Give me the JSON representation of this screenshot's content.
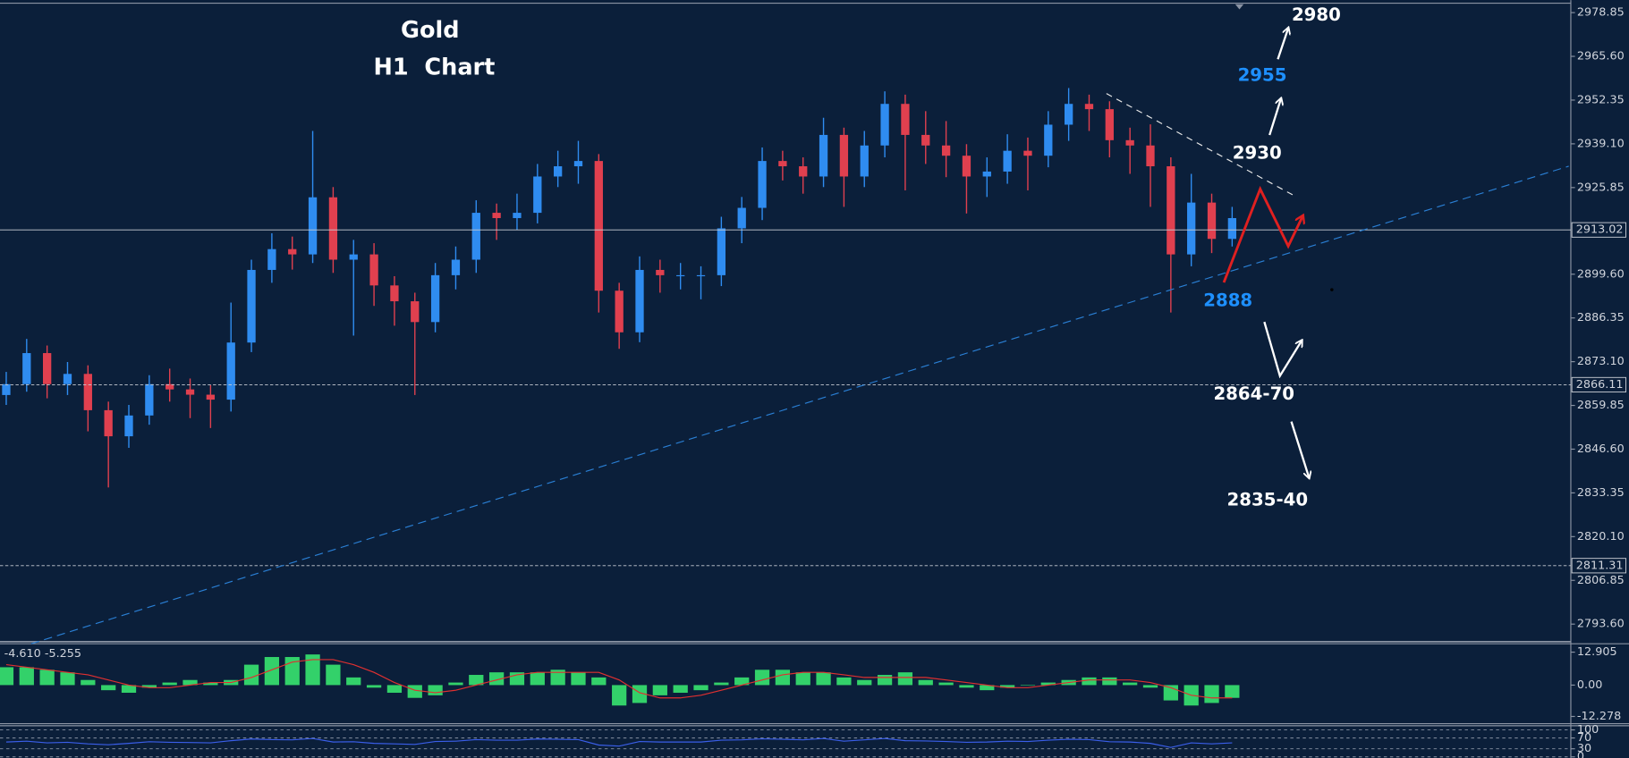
{
  "chart_data": [
    {
      "type": "candlestick",
      "title": "Gold",
      "subtitle": "H1  Chart",
      "up_color": "#2f8cf0",
      "down_color": "#e0404f",
      "open": [
        2863.0,
        2866.3,
        2875.7,
        2866.3,
        2869.4,
        2858.4,
        2850.5,
        2856.8,
        2866.3,
        2864.7,
        2863.1,
        2861.6,
        2878.9,
        2900.9,
        2907.2,
        2905.6,
        2922.9,
        2904.0,
        2905.6,
        2896.2,
        2891.4,
        2885.1,
        2899.3,
        2904.0,
        2918.2,
        2916.6,
        2918.2,
        2929.2,
        2932.3,
        2933.9,
        2894.6,
        2882.0,
        2900.9,
        2899.3,
        2899.3,
        2899.3,
        2913.5,
        2919.7,
        2933.9,
        2932.3,
        2929.2,
        2941.8,
        2929.2,
        2938.6,
        2951.2,
        2941.8,
        2938.6,
        2935.5,
        2929.2,
        2930.7,
        2937.0,
        2935.5,
        2944.9,
        2951.2,
        2949.6,
        2940.2,
        2938.6,
        2932.3,
        2905.6,
        2921.3,
        2910.3
      ],
      "high": [
        2870,
        2880,
        2878,
        2873,
        2872,
        2861,
        2860,
        2869,
        2871,
        2868,
        2866,
        2891,
        2904,
        2912,
        2911,
        2943,
        2926,
        2910,
        2909,
        2899,
        2894,
        2903,
        2908,
        2922,
        2921,
        2924,
        2933,
        2937,
        2940,
        2936,
        2897,
        2905,
        2904,
        2903,
        2902,
        2917,
        2923,
        2938,
        2937,
        2935,
        2947,
        2944,
        2943,
        2955,
        2954,
        2949,
        2946,
        2939,
        2935,
        2942,
        2941,
        2949,
        2956,
        2954,
        2952,
        2944,
        2945,
        2935,
        2930,
        2924,
        2920
      ],
      "low": [
        2860,
        2864,
        2862,
        2863,
        2852,
        2835,
        2847,
        2854,
        2861,
        2856,
        2853,
        2858,
        2876,
        2897,
        2901,
        2903,
        2900,
        2881,
        2890,
        2884,
        2863,
        2882,
        2895,
        2900,
        2910,
        2913,
        2915,
        2926,
        2927,
        2888,
        2877,
        2879,
        2894,
        2895,
        2892,
        2896,
        2909,
        2916,
        2928,
        2924,
        2926,
        2920,
        2926,
        2935,
        2925,
        2933,
        2929,
        2918,
        2923,
        2927,
        2925,
        2932,
        2940,
        2943,
        2935,
        2930,
        2920,
        2888,
        2902,
        2906,
        2908
      ],
      "close": [
        2866.3,
        2875.7,
        2866.3,
        2869.4,
        2858.4,
        2850.5,
        2856.8,
        2866.3,
        2864.7,
        2863.1,
        2861.6,
        2878.9,
        2900.9,
        2907.2,
        2905.6,
        2922.9,
        2904.0,
        2905.6,
        2896.2,
        2891.4,
        2885.1,
        2899.3,
        2904.0,
        2918.2,
        2916.6,
        2918.2,
        2929.2,
        2932.3,
        2933.9,
        2894.6,
        2882.0,
        2900.9,
        2899.3,
        2899.3,
        2899.3,
        2913.5,
        2919.7,
        2933.9,
        2932.3,
        2929.2,
        2941.8,
        2929.2,
        2938.6,
        2951.2,
        2941.8,
        2938.6,
        2935.5,
        2929.2,
        2930.7,
        2937.0,
        2935.5,
        2944.9,
        2951.2,
        2949.6,
        2940.2,
        2938.6,
        2932.3,
        2905.6,
        2921.3,
        2910.3,
        2916.6
      ],
      "ylim": [
        2788.6,
        2981.7
      ],
      "yticks": [
        2978.85,
        {
          "value": 2965.6,
          "label": "2965.60"
        },
        2952.35,
        {
          "value": 2939.1,
          "label": "2939.10"
        },
        2925.85,
        {
          "value": 2899.6,
          "label": "2899.60"
        },
        2886.35,
        {
          "value": 2873.1,
          "label": "2873.10"
        },
        2859.85,
        {
          "value": 2846.6,
          "label": "2846.60"
        },
        2833.35,
        {
          "value": 2820.1,
          "label": "2820.10"
        },
        2806.85,
        {
          "value": 2793.6,
          "label": "2793.60"
        }
      ],
      "levels": [
        {
          "value": 2913.02,
          "style": "solid"
        },
        {
          "value": 2866.11,
          "style": "dashed"
        },
        {
          "value": 2811.31,
          "style": "dashed"
        }
      ],
      "level_color": "#c8ccd4",
      "annotations": [
        {
          "text": "2980",
          "color": "#ffffff"
        },
        {
          "text": "2955",
          "color": "#1e90ff"
        },
        {
          "text": "2930",
          "color": "#ffffff"
        },
        {
          "text": "2888",
          "color": "#1e90ff"
        },
        {
          "text": "2864-70",
          "color": "#ffffff"
        },
        {
          "text": "2835-40",
          "color": "#ffffff"
        }
      ]
    },
    {
      "type": "macd",
      "label": "-4.610 -5.255",
      "color": "#33d16a",
      "signal_color": "#e03030",
      "values": [
        7,
        7,
        6,
        5,
        2,
        -2,
        -3,
        -1,
        1,
        2,
        1,
        2,
        8,
        11,
        11,
        12,
        8,
        3,
        -1,
        -3,
        -5,
        -4,
        1,
        4,
        5,
        5,
        5,
        6,
        5,
        3,
        -8,
        -7,
        -4,
        -3,
        -2,
        1,
        3,
        6,
        6,
        5,
        5,
        3,
        2,
        4,
        5,
        2,
        1,
        -1,
        -2,
        -1,
        0,
        1,
        2,
        3,
        3,
        1,
        -1,
        -6,
        -8,
        -7,
        -5
      ],
      "signal": [
        8,
        7,
        6,
        5,
        4,
        2,
        0,
        -1,
        -1,
        0,
        1,
        1,
        3,
        6,
        9,
        10,
        10,
        8,
        5,
        1,
        -2,
        -3,
        -2,
        0,
        2,
        4,
        5,
        5,
        5,
        5,
        2,
        -3,
        -5,
        -5,
        -4,
        -2,
        0,
        2,
        4,
        5,
        5,
        4,
        3,
        3,
        3,
        3,
        2,
        1,
        0,
        -1,
        -1,
        0,
        1,
        2,
        2,
        2,
        1,
        -1,
        -4,
        -5,
        -5
      ],
      "ylim": [
        -15.1,
        15.8
      ],
      "yticks": [
        12.905,
        {
          "value": 0,
          "label": "0.00"
        },
        -12.278
      ]
    },
    {
      "type": "line",
      "color": "#3a5ee8",
      "values": [
        55,
        58,
        52,
        54,
        48,
        45,
        50,
        56,
        54,
        53,
        52,
        60,
        66,
        64,
        63,
        68,
        55,
        56,
        50,
        48,
        46,
        57,
        58,
        64,
        62,
        62,
        66,
        65,
        64,
        44,
        40,
        57,
        55,
        55,
        55,
        62,
        63,
        67,
        65,
        63,
        68,
        58,
        63,
        68,
        60,
        59,
        57,
        54,
        55,
        58,
        57,
        62,
        65,
        64,
        56,
        55,
        50,
        35,
        52,
        48,
        52
      ],
      "ylim": [
        -3.8,
        115.4
      ],
      "yticks": [
        100,
        70,
        30,
        0
      ],
      "grid": true
    }
  ]
}
